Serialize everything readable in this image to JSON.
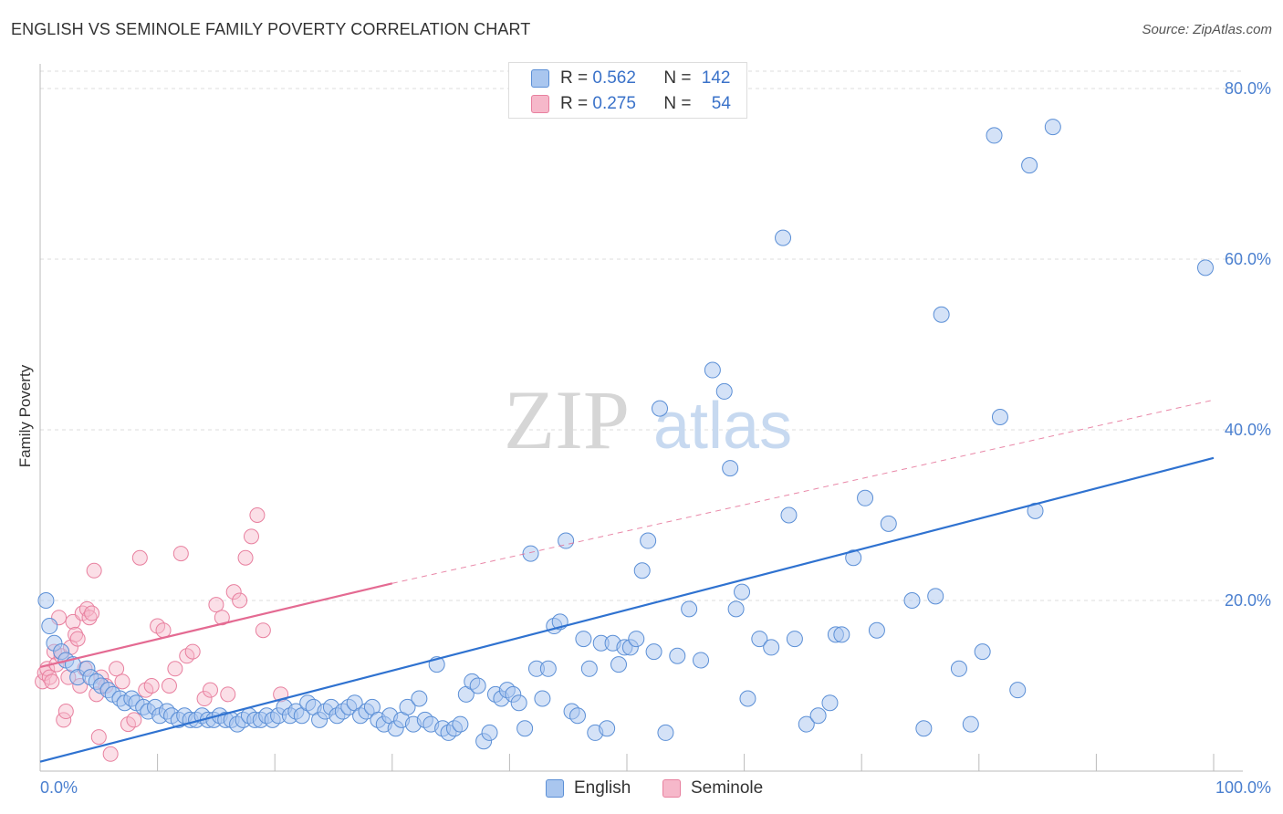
{
  "header": {
    "title": "ENGLISH VS SEMINOLE FAMILY POVERTY CORRELATION CHART",
    "source": "Source: ZipAtlas.com"
  },
  "watermark": {
    "zip": "ZIP",
    "atlas": "atlas"
  },
  "legend_top": {
    "rows": [
      {
        "r_label": "R = ",
        "r_value": "0.562",
        "n_label": "N = ",
        "n_value": "142"
      },
      {
        "r_label": "R = ",
        "r_value": "0.275",
        "n_label": "N = ",
        "n_value": "54"
      }
    ]
  },
  "legend_bottom": {
    "english": "English",
    "seminole": "Seminole"
  },
  "colors": {
    "english_fill": "#a9c6ef",
    "english_stroke": "#5b8fd6",
    "english_line": "#2f72d0",
    "seminole_fill": "#f6b8ca",
    "seminole_stroke": "#e8809f",
    "seminole_line": "#e46a92",
    "grid": "#dddddd",
    "tick_text": "#4a7fcf"
  },
  "chart_data": {
    "type": "scatter",
    "title": "ENGLISH VS SEMINOLE FAMILY POVERTY CORRELATION CHART",
    "xlabel": "",
    "ylabel": "Family Poverty",
    "xlim": [
      0,
      100
    ],
    "ylim": [
      0,
      83
    ],
    "x_tick_labels": [
      "0.0%",
      "100.0%"
    ],
    "y_ticks": [
      20,
      40,
      60,
      80
    ],
    "y_tick_labels": [
      "20.0%",
      "40.0%",
      "60.0%",
      "80.0%"
    ],
    "grid": true,
    "legend_position": "top-center",
    "series": [
      {
        "name": "English",
        "R": 0.562,
        "N": 142,
        "trend": {
          "x": [
            0,
            100
          ],
          "y": [
            1.1,
            36.7
          ]
        },
        "points": [
          [
            0.5,
            20.0
          ],
          [
            0.8,
            17.0
          ],
          [
            1.2,
            15.0
          ],
          [
            1.8,
            14.0
          ],
          [
            2.2,
            13.0
          ],
          [
            2.8,
            12.5
          ],
          [
            3.2,
            11.0
          ],
          [
            4.0,
            12.0
          ],
          [
            4.3,
            11.0
          ],
          [
            4.8,
            10.5
          ],
          [
            5.2,
            10.0
          ],
          [
            5.8,
            9.5
          ],
          [
            6.2,
            9.0
          ],
          [
            6.8,
            8.5
          ],
          [
            7.2,
            8.0
          ],
          [
            7.8,
            8.5
          ],
          [
            8.2,
            8.0
          ],
          [
            8.8,
            7.5
          ],
          [
            9.2,
            7.0
          ],
          [
            9.8,
            7.5
          ],
          [
            10.2,
            6.5
          ],
          [
            10.8,
            7.0
          ],
          [
            11.2,
            6.5
          ],
          [
            11.8,
            6.0
          ],
          [
            12.3,
            6.5
          ],
          [
            12.8,
            6.0
          ],
          [
            13.3,
            6.0
          ],
          [
            13.8,
            6.5
          ],
          [
            14.3,
            6.0
          ],
          [
            14.8,
            6.0
          ],
          [
            15.3,
            6.5
          ],
          [
            15.8,
            6.0
          ],
          [
            16.3,
            6.0
          ],
          [
            16.8,
            5.5
          ],
          [
            17.3,
            6.0
          ],
          [
            17.8,
            6.5
          ],
          [
            18.3,
            6.0
          ],
          [
            18.8,
            6.0
          ],
          [
            19.3,
            6.5
          ],
          [
            19.8,
            6.0
          ],
          [
            20.3,
            6.5
          ],
          [
            20.8,
            7.5
          ],
          [
            21.3,
            6.5
          ],
          [
            21.8,
            7.0
          ],
          [
            22.3,
            6.5
          ],
          [
            22.8,
            8.0
          ],
          [
            23.3,
            7.5
          ],
          [
            23.8,
            6.0
          ],
          [
            24.3,
            7.0
          ],
          [
            24.8,
            7.5
          ],
          [
            25.3,
            6.5
          ],
          [
            25.8,
            7.0
          ],
          [
            26.3,
            7.5
          ],
          [
            26.8,
            8.0
          ],
          [
            27.3,
            6.5
          ],
          [
            27.8,
            7.0
          ],
          [
            28.3,
            7.5
          ],
          [
            28.8,
            6.0
          ],
          [
            29.3,
            5.5
          ],
          [
            29.8,
            6.5
          ],
          [
            30.3,
            5.0
          ],
          [
            30.8,
            6.0
          ],
          [
            31.3,
            7.5
          ],
          [
            31.8,
            5.5
          ],
          [
            32.3,
            8.5
          ],
          [
            32.8,
            6.0
          ],
          [
            33.3,
            5.5
          ],
          [
            33.8,
            12.5
          ],
          [
            34.3,
            5.0
          ],
          [
            34.8,
            4.5
          ],
          [
            35.3,
            5.0
          ],
          [
            35.8,
            5.5
          ],
          [
            36.3,
            9.0
          ],
          [
            36.8,
            10.5
          ],
          [
            37.3,
            10.0
          ],
          [
            37.8,
            3.5
          ],
          [
            38.3,
            4.5
          ],
          [
            38.8,
            9.0
          ],
          [
            39.3,
            8.5
          ],
          [
            39.8,
            9.5
          ],
          [
            40.3,
            9.0
          ],
          [
            40.8,
            8.0
          ],
          [
            41.3,
            5.0
          ],
          [
            41.8,
            25.5
          ],
          [
            42.3,
            12.0
          ],
          [
            42.8,
            8.5
          ],
          [
            43.3,
            12.0
          ],
          [
            43.8,
            17.0
          ],
          [
            44.3,
            17.5
          ],
          [
            44.8,
            27.0
          ],
          [
            45.3,
            7.0
          ],
          [
            45.8,
            6.5
          ],
          [
            46.3,
            15.5
          ],
          [
            46.8,
            12.0
          ],
          [
            47.3,
            4.5
          ],
          [
            47.8,
            15.0
          ],
          [
            48.3,
            5.0
          ],
          [
            48.8,
            15.0
          ],
          [
            49.3,
            12.5
          ],
          [
            49.8,
            14.5
          ],
          [
            50.3,
            14.5
          ],
          [
            50.8,
            15.5
          ],
          [
            51.3,
            23.5
          ],
          [
            51.8,
            27.0
          ],
          [
            52.3,
            14.0
          ],
          [
            52.8,
            42.5
          ],
          [
            53.3,
            4.5
          ],
          [
            54.3,
            13.5
          ],
          [
            55.3,
            19.0
          ],
          [
            56.3,
            13.0
          ],
          [
            57.3,
            47.0
          ],
          [
            58.3,
            44.5
          ],
          [
            58.8,
            35.5
          ],
          [
            59.3,
            19.0
          ],
          [
            59.8,
            21.0
          ],
          [
            60.3,
            8.5
          ],
          [
            61.3,
            15.5
          ],
          [
            62.3,
            14.5
          ],
          [
            63.3,
            62.5
          ],
          [
            63.8,
            30.0
          ],
          [
            64.3,
            15.5
          ],
          [
            65.3,
            5.5
          ],
          [
            66.3,
            6.5
          ],
          [
            67.3,
            8.0
          ],
          [
            67.8,
            16.0
          ],
          [
            68.3,
            16.0
          ],
          [
            69.3,
            25.0
          ],
          [
            70.3,
            32.0
          ],
          [
            71.3,
            16.5
          ],
          [
            72.3,
            29.0
          ],
          [
            74.3,
            20.0
          ],
          [
            75.3,
            5.0
          ],
          [
            76.3,
            20.5
          ],
          [
            76.8,
            53.5
          ],
          [
            78.3,
            12.0
          ],
          [
            79.3,
            5.5
          ],
          [
            80.3,
            14.0
          ],
          [
            81.3,
            74.5
          ],
          [
            81.8,
            41.5
          ],
          [
            83.3,
            9.5
          ],
          [
            84.3,
            71.0
          ],
          [
            84.8,
            30.5
          ],
          [
            86.3,
            75.5
          ],
          [
            99.3,
            59.0
          ]
        ]
      },
      {
        "name": "Seminole",
        "R": 0.275,
        "N": 54,
        "trend": {
          "x": [
            0,
            30
          ],
          "y": [
            12.2,
            22.0
          ]
        },
        "trend_dashed_extension": {
          "x": [
            30,
            100
          ],
          "y": [
            22.0,
            43.5
          ]
        },
        "points": [
          [
            0.2,
            10.5
          ],
          [
            0.4,
            11.5
          ],
          [
            0.6,
            12.0
          ],
          [
            0.8,
            11.0
          ],
          [
            1.0,
            10.5
          ],
          [
            1.2,
            14.0
          ],
          [
            1.4,
            12.5
          ],
          [
            1.6,
            18.0
          ],
          [
            1.8,
            13.5
          ],
          [
            2.0,
            6.0
          ],
          [
            2.2,
            7.0
          ],
          [
            2.4,
            11.0
          ],
          [
            2.6,
            14.5
          ],
          [
            2.8,
            17.5
          ],
          [
            3.0,
            16.0
          ],
          [
            3.2,
            15.5
          ],
          [
            3.4,
            10.0
          ],
          [
            3.6,
            18.5
          ],
          [
            3.8,
            12.0
          ],
          [
            4.0,
            19.0
          ],
          [
            4.2,
            18.0
          ],
          [
            4.4,
            18.5
          ],
          [
            4.6,
            23.5
          ],
          [
            4.8,
            9.0
          ],
          [
            5.0,
            4.0
          ],
          [
            5.2,
            11.0
          ],
          [
            5.6,
            10.0
          ],
          [
            6.0,
            2.0
          ],
          [
            6.5,
            12.0
          ],
          [
            7.0,
            10.5
          ],
          [
            7.5,
            5.5
          ],
          [
            8.0,
            6.0
          ],
          [
            8.5,
            25.0
          ],
          [
            9.0,
            9.5
          ],
          [
            9.5,
            10.0
          ],
          [
            10.0,
            17.0
          ],
          [
            10.5,
            16.5
          ],
          [
            11.0,
            10.0
          ],
          [
            11.5,
            12.0
          ],
          [
            12.0,
            25.5
          ],
          [
            12.5,
            13.5
          ],
          [
            13.0,
            14.0
          ],
          [
            14.0,
            8.5
          ],
          [
            14.5,
            9.5
          ],
          [
            15.0,
            19.5
          ],
          [
            15.5,
            18.0
          ],
          [
            16.0,
            9.0
          ],
          [
            16.5,
            21.0
          ],
          [
            17.0,
            20.0
          ],
          [
            17.5,
            25.0
          ],
          [
            18.0,
            27.5
          ],
          [
            18.5,
            30.0
          ],
          [
            19.0,
            16.5
          ],
          [
            20.5,
            9.0
          ]
        ]
      }
    ]
  }
}
